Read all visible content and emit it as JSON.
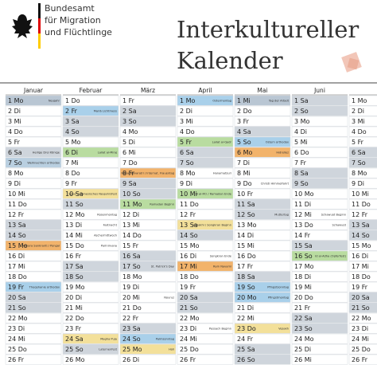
{
  "header": {
    "org": [
      "Bundesamt",
      "für Migration",
      "und Flüchtlinge"
    ],
    "title": [
      "Interkultureller",
      "Kalender"
    ]
  },
  "months": [
    {
      "name": "Januar",
      "rows": [
        [
          "1 Mo",
          "Neujahr",
          "#b9c6d3"
        ],
        [
          "2 Di"
        ],
        [
          "3 Mi"
        ],
        [
          "4 Do"
        ],
        [
          "5 Fr"
        ],
        [
          "6 Sa",
          "Heilige Drei Könige",
          "#cfd5dc"
        ],
        [
          "7 So",
          "Weihnachten orthodox",
          "#b9cfe0"
        ],
        [
          "8 Mo"
        ],
        [
          "9 Di"
        ],
        [
          "10 Mi"
        ],
        [
          "11 Do"
        ],
        [
          "12 Fr"
        ],
        [
          "13 Sa",
          null,
          "#cfd5dc"
        ],
        [
          "14 So",
          null,
          "#cfd5dc"
        ],
        [
          "15 Mo",
          "Makara Sankranti / Pongal",
          "#f2b36b"
        ],
        [
          "16 Di"
        ],
        [
          "17 Mi"
        ],
        [
          "18 Do"
        ],
        [
          "19 Fr",
          "Theophanie orthodox",
          "#a9d0ea"
        ],
        [
          "20 Sa",
          null,
          "#cfd5dc"
        ],
        [
          "21 So",
          null,
          "#cfd5dc"
        ],
        [
          "22 Mo"
        ],
        [
          "23 Di"
        ],
        [
          "24 Mi"
        ],
        [
          "25 Do"
        ],
        [
          "26 Fr"
        ]
      ]
    },
    {
      "name": "Februar",
      "rows": [
        [
          "1 Do"
        ],
        [
          "2 Fr",
          "Mariä Lichtmess",
          "#a9d0ea"
        ],
        [
          "3 Sa",
          null,
          "#cfd5dc"
        ],
        [
          "4 So",
          null,
          "#cfd5dc"
        ],
        [
          "5 Mo"
        ],
        [
          "6 Di",
          "Lailat al-Miraj",
          "#b9dca0"
        ],
        [
          "7 Mi"
        ],
        [
          "8 Do"
        ],
        [
          "9 Fr"
        ],
        [
          "10 Sa",
          "Losar / Chinesisches Neujahrsfest",
          "#f3e09a"
        ],
        [
          "11 So",
          null,
          "#cfd5dc"
        ],
        [
          "12 Mo",
          "Rosenmontag"
        ],
        [
          "13 Di",
          "Fastnacht"
        ],
        [
          "14 Mi",
          "Aschermittwoch"
        ],
        [
          "15 Do",
          "Parinirvana"
        ],
        [
          "16 Fr"
        ],
        [
          "17 Sa",
          null,
          "#cfd5dc"
        ],
        [
          "18 So",
          null,
          "#cfd5dc"
        ],
        [
          "19 Mo"
        ],
        [
          "20 Di"
        ],
        [
          "21 Mi"
        ],
        [
          "22 Do"
        ],
        [
          "23 Fr"
        ],
        [
          "24 Sa",
          "Magha Puja",
          "#f3e09a"
        ],
        [
          "25 So",
          "Laternenfest",
          "#cfd5dc"
        ],
        [
          "26 Mo"
        ]
      ]
    },
    {
      "name": "März",
      "rows": [
        [
          "1 Fr"
        ],
        [
          "2 Sa",
          null,
          "#cfd5dc"
        ],
        [
          "3 So",
          null,
          "#cfd5dc"
        ],
        [
          "4 Mo"
        ],
        [
          "5 Di"
        ],
        [
          "6 Mi"
        ],
        [
          "7 Do"
        ],
        [
          "8 Fr",
          "Maha Shivaratri / Internat. Frauentag",
          "#f2b36b"
        ],
        [
          "9 Sa",
          null,
          "#cfd5dc"
        ],
        [
          "10 So",
          null,
          "#cfd5dc"
        ],
        [
          "11 Mo",
          "Ramadan Beginn",
          "#b9dca0"
        ],
        [
          "12 Di"
        ],
        [
          "13 Mi"
        ],
        [
          "14 Do"
        ],
        [
          "15 Fr"
        ],
        [
          "16 Sa",
          null,
          "#cfd5dc"
        ],
        [
          "17 So",
          "St. Patrick's Day",
          "#cfd5dc"
        ],
        [
          "18 Mo"
        ],
        [
          "19 Di"
        ],
        [
          "20 Mi",
          "Nouruz"
        ],
        [
          "21 Do"
        ],
        [
          "22 Fr"
        ],
        [
          "23 Sa",
          null,
          "#cfd5dc"
        ],
        [
          "24 So",
          "Palmsonntag",
          "#a9d0ea"
        ],
        [
          "25 Mo",
          "Holi",
          "#f3e09a"
        ],
        [
          "26 Di"
        ]
      ]
    },
    {
      "name": "April",
      "rows": [
        [
          "1 Mo",
          "Ostermontag",
          "#a9d0ea"
        ],
        [
          "2 Di"
        ],
        [
          "3 Mi"
        ],
        [
          "4 Do"
        ],
        [
          "5 Fr",
          "Lailat al-Qadr",
          "#b9dca0"
        ],
        [
          "6 Sa",
          null,
          "#cfd5dc"
        ],
        [
          "7 So",
          null,
          "#cfd5dc"
        ],
        [
          "8 Mo",
          "Hanamatsuri"
        ],
        [
          "9 Di"
        ],
        [
          "10 Mi",
          "Id al-Fitr / Ramadan Ende",
          "#b9dca0"
        ],
        [
          "11 Do"
        ],
        [
          "12 Fr"
        ],
        [
          "13 Sa",
          "Vaisakhi / Songkran Beginn",
          "#f3e09a"
        ],
        [
          "14 So",
          null,
          "#cfd5dc"
        ],
        [
          "15 Mo"
        ],
        [
          "16 Di",
          "Songkran Ende"
        ],
        [
          "17 Mi",
          "Ram Navami",
          "#f2b36b"
        ],
        [
          "18 Do"
        ],
        [
          "19 Fr"
        ],
        [
          "20 Sa",
          null,
          "#cfd5dc"
        ],
        [
          "21 So",
          null,
          "#cfd5dc"
        ],
        [
          "22 Mo"
        ],
        [
          "23 Di",
          "Pessach Beginn"
        ],
        [
          "24 Mi"
        ],
        [
          "25 Do"
        ],
        [
          "26 Fr"
        ]
      ]
    },
    {
      "name": "Mai",
      "rows": [
        [
          "1 Mi",
          "Tag der Arbeit",
          "#b9c6d3"
        ],
        [
          "2 Do"
        ],
        [
          "3 Fr"
        ],
        [
          "4 Sa",
          null,
          "#cfd5dc"
        ],
        [
          "5 So",
          "Ostern orthodox",
          "#a9d0ea"
        ],
        [
          "6 Mo",
          "Hıdrellez",
          "#f2b36b"
        ],
        [
          "7 Di"
        ],
        [
          "8 Mi"
        ],
        [
          "9 Do",
          "Christi Himmelfahrt"
        ],
        [
          "10 Fr"
        ],
        [
          "11 Sa",
          null,
          "#cfd5dc"
        ],
        [
          "12 So",
          "Muttertag",
          "#cfd5dc"
        ],
        [
          "13 Mo"
        ],
        [
          "14 Di"
        ],
        [
          "15 Mi"
        ],
        [
          "16 Do"
        ],
        [
          "17 Fr"
        ],
        [
          "18 Sa",
          null,
          "#cfd5dc"
        ],
        [
          "19 So",
          "Pfingstsonntag",
          "#a9d0ea"
        ],
        [
          "20 Mo",
          "Pfingstmontag",
          "#a9d0ea"
        ],
        [
          "21 Di"
        ],
        [
          "22 Mi"
        ],
        [
          "23 Do",
          "Vesakh",
          "#f3e09a"
        ],
        [
          "24 Fr"
        ],
        [
          "25 Sa",
          null,
          "#cfd5dc"
        ],
        [
          "26 So",
          null,
          "#cfd5dc"
        ]
      ]
    },
    {
      "name": "Juni",
      "rows": [
        [
          "1 Sa",
          null,
          "#cfd5dc"
        ],
        [
          "2 So",
          null,
          "#cfd5dc"
        ],
        [
          "3 Mo"
        ],
        [
          "4 Di"
        ],
        [
          "5 Mi"
        ],
        [
          "6 Do"
        ],
        [
          "7 Fr"
        ],
        [
          "8 Sa",
          null,
          "#cfd5dc"
        ],
        [
          "9 So",
          null,
          "#cfd5dc"
        ],
        [
          "10 Mo"
        ],
        [
          "11 Di"
        ],
        [
          "12 Mi",
          "Schawuot Beginn"
        ],
        [
          "13 Do",
          "Schawuot"
        ],
        [
          "14 Fr"
        ],
        [
          "15 Sa",
          null,
          "#cfd5dc"
        ],
        [
          "16 So",
          "Id al-Adha (Opferfest)",
          "#b9dca0"
        ],
        [
          "17 Mo"
        ],
        [
          "18 Di"
        ],
        [
          "19 Mi"
        ],
        [
          "20 Do"
        ],
        [
          "21 Fr"
        ],
        [
          "22 Sa",
          null,
          "#cfd5dc"
        ],
        [
          "23 So",
          null,
          "#cfd5dc"
        ],
        [
          "24 Mo"
        ],
        [
          "25 Di"
        ],
        [
          "26 Mi"
        ]
      ]
    },
    {
      "rows": [
        [
          "1 Mo"
        ],
        [
          "2 Di"
        ],
        [
          "3 Mi"
        ],
        [
          "4 Do"
        ],
        [
          "5 Fr"
        ],
        [
          "6 Sa",
          null,
          "#cfd5dc"
        ],
        [
          "7 So",
          null,
          "#cfd5dc"
        ],
        [
          "8 Mo"
        ],
        [
          "9 Di"
        ],
        [
          "10 Mi"
        ],
        [
          "11 Do"
        ],
        [
          "12 Fr"
        ],
        [
          "13 Sa",
          null,
          "#cfd5dc"
        ],
        [
          "14 So",
          null,
          "#cfd5dc"
        ],
        [
          "15 Mo"
        ],
        [
          "16 Di"
        ],
        [
          "17 Mi"
        ],
        [
          "18 Do"
        ],
        [
          "19 Fr"
        ],
        [
          "20 Sa",
          null,
          "#cfd5dc"
        ],
        [
          "21 So",
          null,
          "#cfd5dc"
        ],
        [
          "22 Mo"
        ],
        [
          "23 Di"
        ],
        [
          "24 Mi"
        ],
        [
          "25 Do"
        ],
        [
          "26 Fr"
        ]
      ]
    }
  ]
}
